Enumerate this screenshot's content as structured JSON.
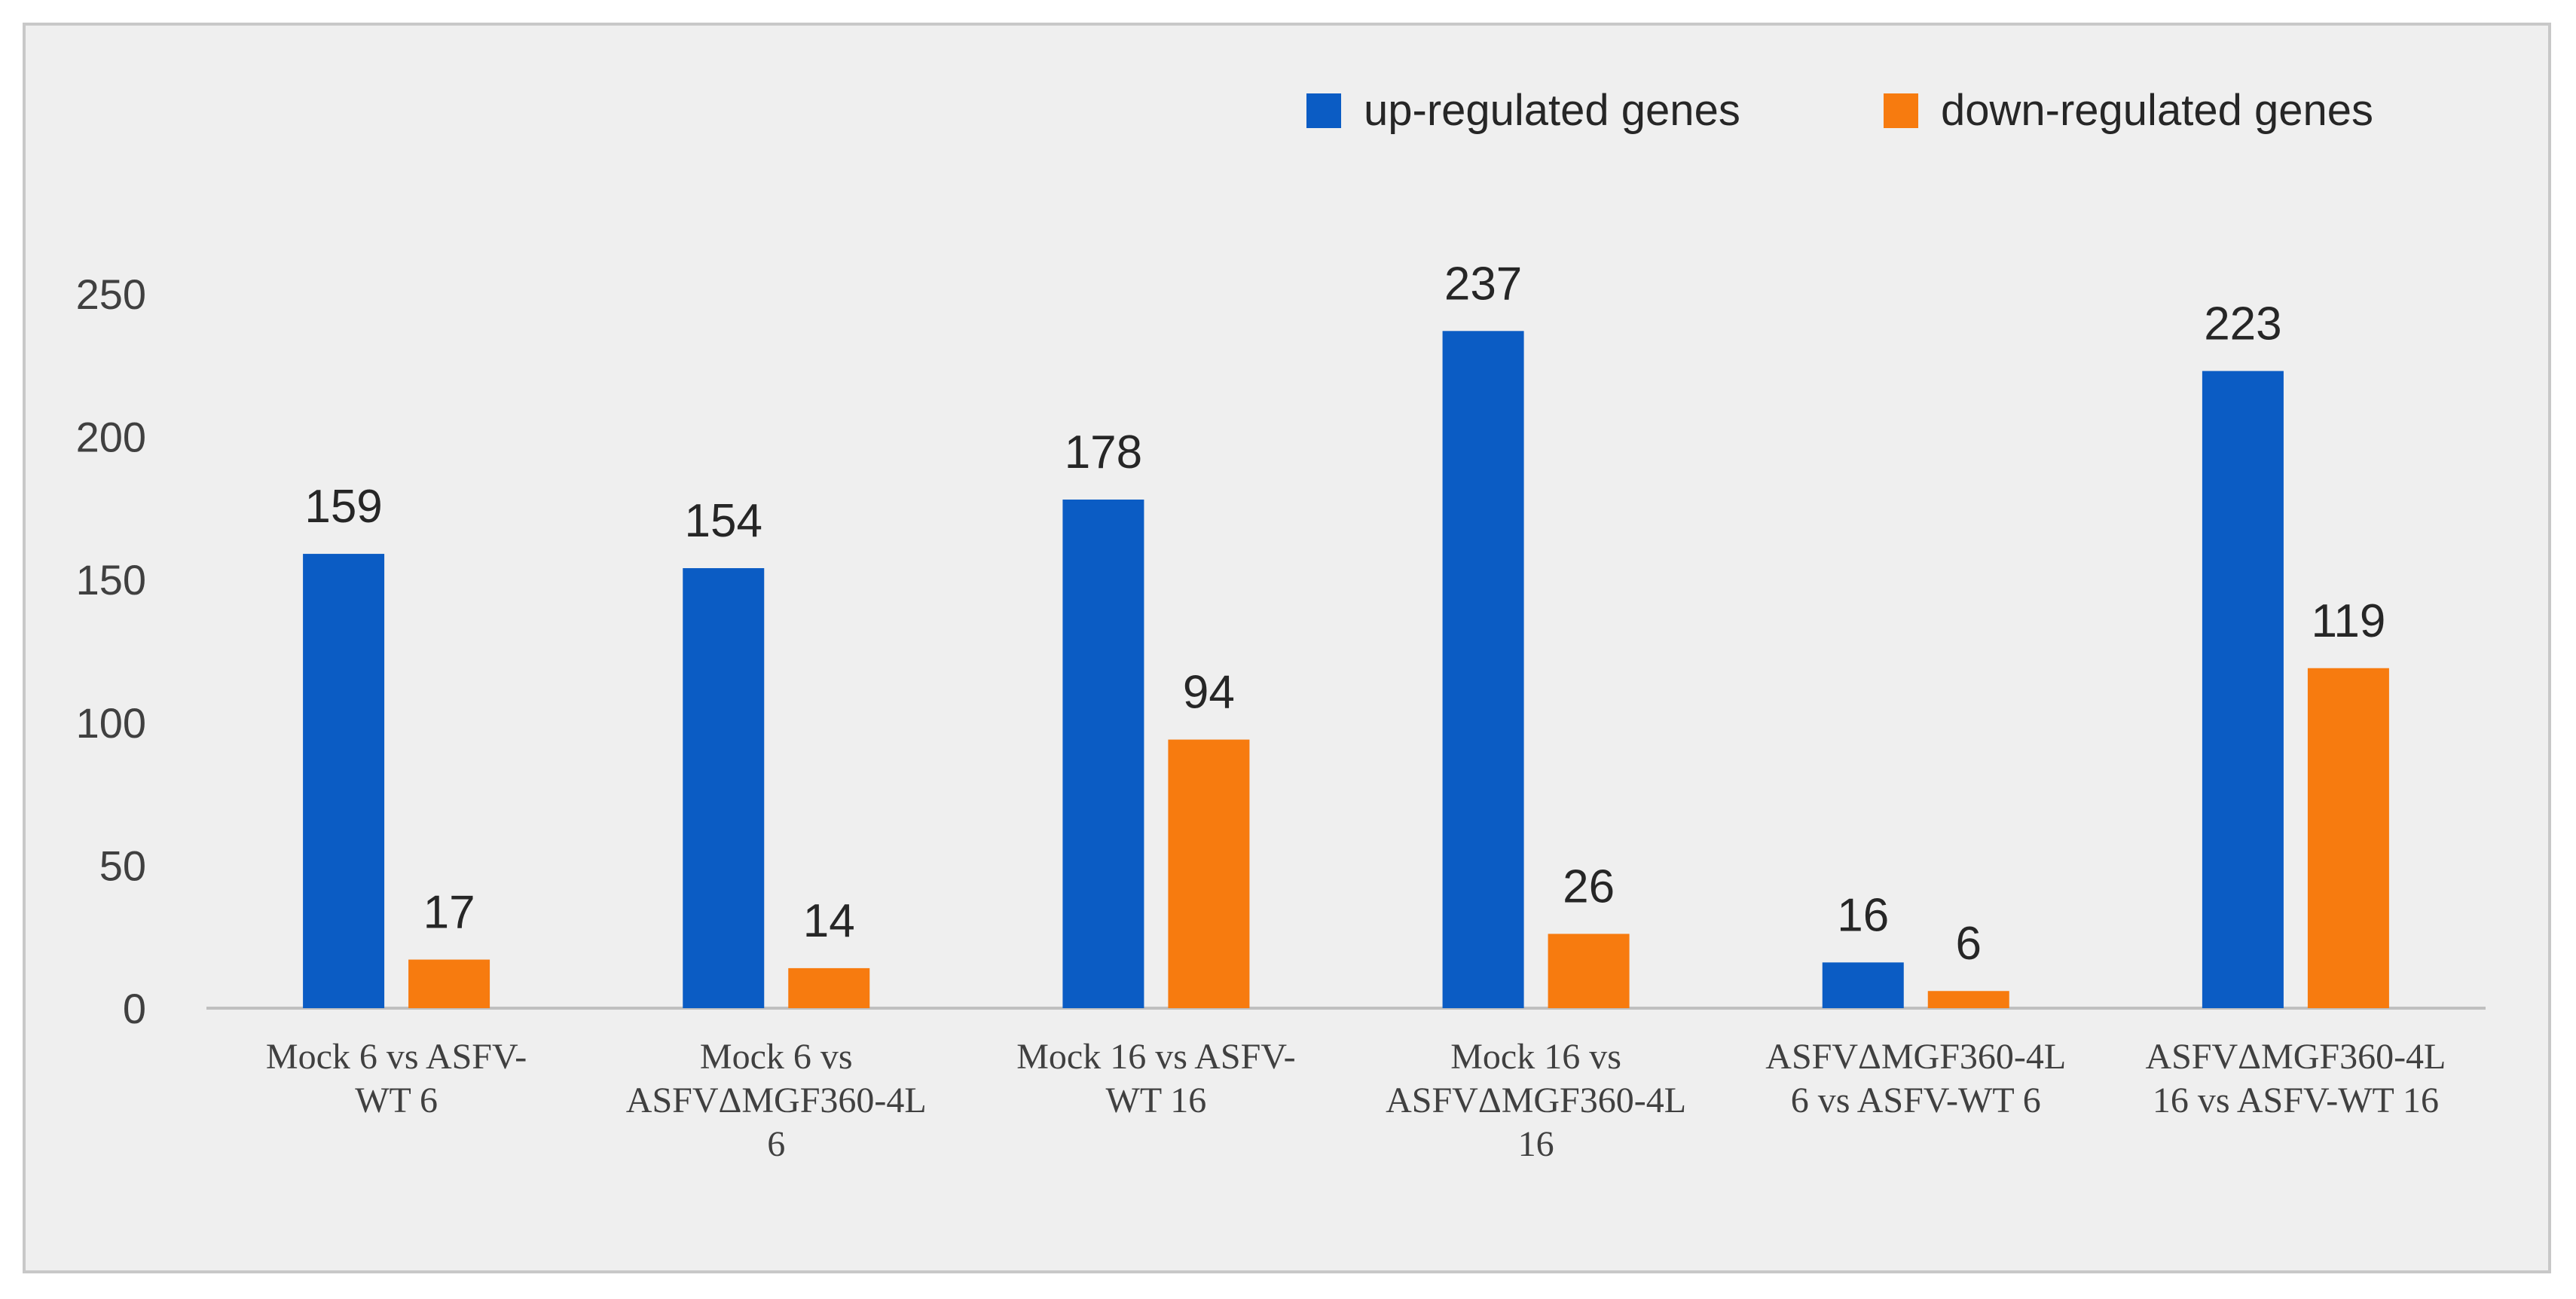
{
  "chart_data": {
    "type": "bar",
    "title": "",
    "xlabel": "",
    "ylabel": "",
    "ylim": [
      0,
      250
    ],
    "yticks": [
      0,
      50,
      100,
      150,
      200,
      250
    ],
    "grid": false,
    "legend_position": "top-right",
    "categories": [
      [
        "Mock 6 vs ASFV-",
        "WT 6"
      ],
      [
        "Mock 6 vs",
        "ASFVΔMGF360-4L",
        "6"
      ],
      [
        "Mock 16 vs ASFV-",
        "WT 16"
      ],
      [
        "Mock 16 vs",
        "ASFVΔMGF360-4L",
        "16"
      ],
      [
        "ASFVΔMGF360-4L",
        "6 vs ASFV-WT 6"
      ],
      [
        "ASFVΔMGF360-4L",
        "16 vs ASFV-WT 16"
      ]
    ],
    "series": [
      {
        "name": "up-regulated genes",
        "color": "#0b5cc4",
        "values": [
          159,
          154,
          178,
          237,
          16,
          223
        ]
      },
      {
        "name": "down-regulated genes",
        "color": "#f77b0f",
        "values": [
          17,
          14,
          94,
          26,
          6,
          119
        ]
      }
    ]
  }
}
